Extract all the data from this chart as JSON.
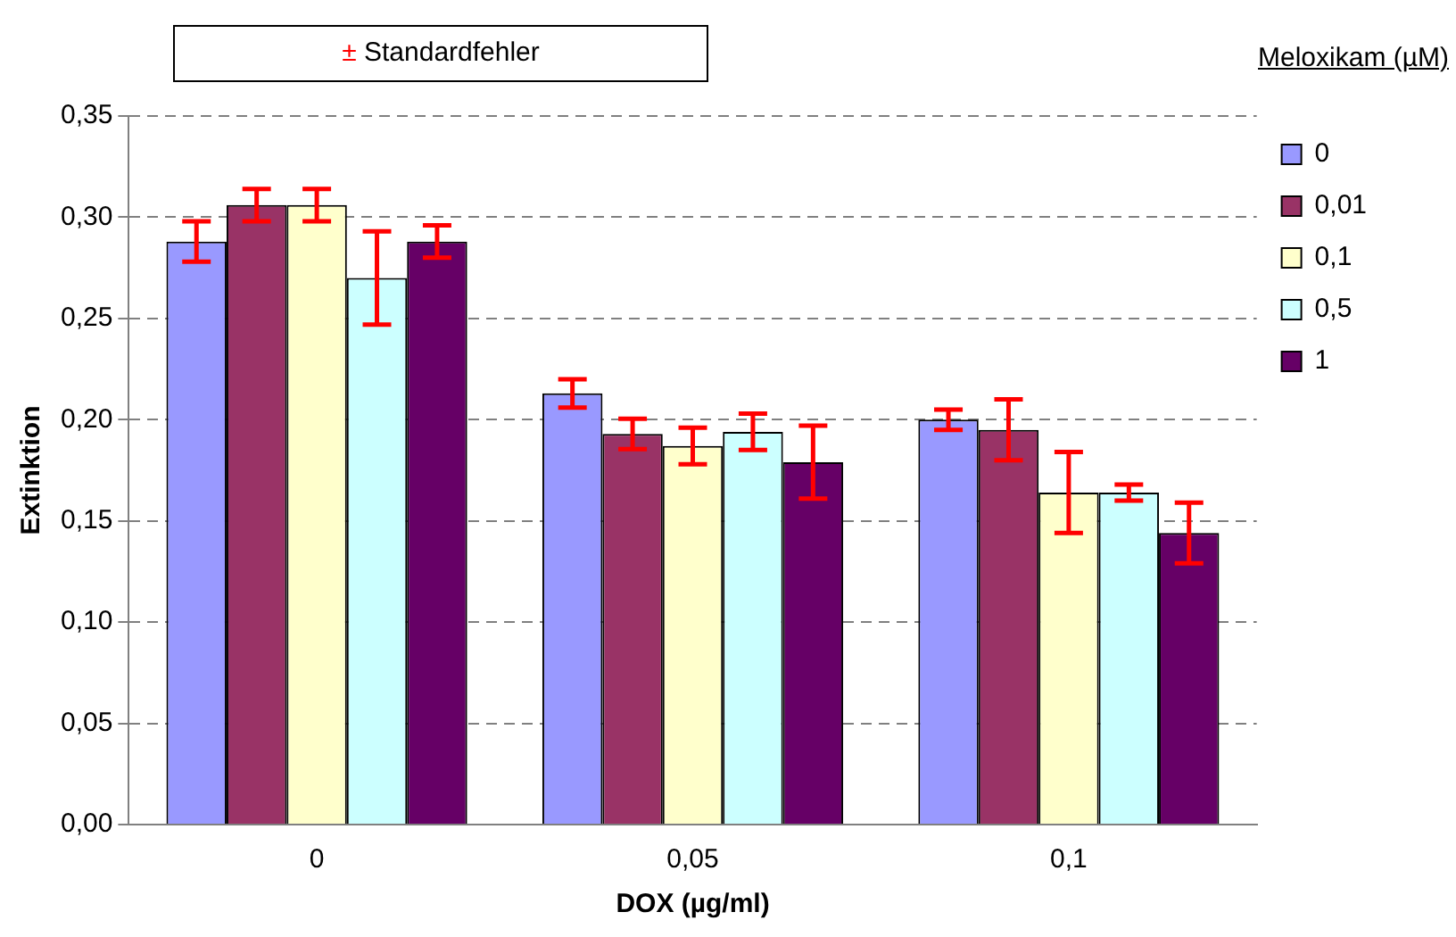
{
  "chart_data": {
    "type": "bar",
    "categories": [
      "0",
      "0,05",
      "0,1"
    ],
    "xlabel": "DOX (µg/ml)",
    "ylabel": "Extinktion",
    "legend_title": "Meloxikam (µM)",
    "annotations": [
      "± Standardfehler"
    ],
    "series": [
      {
        "name": "0",
        "color": "#9999ff",
        "values": [
          0.288,
          0.213,
          0.2
        ],
        "errors": [
          0.01,
          0.007,
          0.005
        ]
      },
      {
        "name": "0,01",
        "color": "#993366",
        "values": [
          0.306,
          0.193,
          0.195
        ],
        "errors": [
          0.008,
          0.0075,
          0.015
        ]
      },
      {
        "name": "0,1",
        "color": "#ffffcc",
        "values": [
          0.306,
          0.187,
          0.164
        ],
        "errors": [
          0.008,
          0.009,
          0.02
        ]
      },
      {
        "name": "0,5",
        "color": "#ccffff",
        "values": [
          0.27,
          0.194,
          0.164
        ],
        "errors": [
          0.023,
          0.009,
          0.004
        ]
      },
      {
        "name": "1",
        "color": "#660066",
        "values": [
          0.288,
          0.179,
          0.144
        ],
        "errors": [
          0.008,
          0.018,
          0.015
        ]
      }
    ],
    "ylim": [
      0,
      0.35
    ],
    "yticks": [
      {
        "value": 0,
        "label": "0,00"
      },
      {
        "value": 0.05,
        "label": "0,05"
      },
      {
        "value": 0.1,
        "label": "0,10"
      },
      {
        "value": 0.15,
        "label": "0,15"
      },
      {
        "value": 0.2,
        "label": "0,20"
      },
      {
        "value": 0.25,
        "label": "0,25"
      },
      {
        "value": 0.3,
        "label": "0,30"
      },
      {
        "value": 0.35,
        "label": "0,35"
      }
    ],
    "grid": "y",
    "legend": "right"
  }
}
